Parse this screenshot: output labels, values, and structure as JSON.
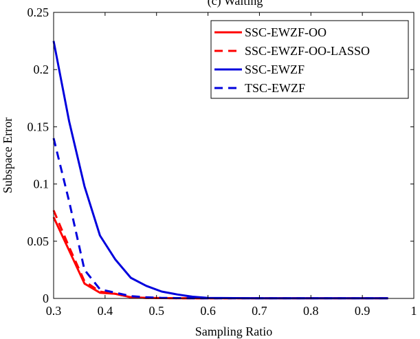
{
  "chart_data": {
    "type": "line",
    "title": "(c) Waiting",
    "xlabel": "Sampling Ratio",
    "ylabel": "Subspace Error",
    "xlim": [
      0.3,
      1
    ],
    "ylim": [
      0,
      0.25
    ],
    "xticks": [
      0.3,
      0.4,
      0.5,
      0.6,
      0.7,
      0.8,
      0.9,
      1
    ],
    "xtick_labels": [
      "0.3",
      "0.4",
      "0.5",
      "0.6",
      "0.7",
      "0.8",
      "0.9",
      "1"
    ],
    "yticks": [
      0,
      0.05,
      0.1,
      0.15,
      0.2,
      0.25
    ],
    "ytick_labels": [
      "0",
      "0.05",
      "0.1",
      "0.15",
      "0.2",
      "0.25"
    ],
    "grid": false,
    "legend_position": "top-right",
    "series": [
      {
        "name": "SSC-EWZF-OO",
        "color": "#ff0000",
        "dash": "solid",
        "x": [
          0.3,
          0.33,
          0.36,
          0.39,
          0.42,
          0.45,
          0.48,
          0.51,
          0.54,
          0.57,
          0.6,
          0.65,
          0.7,
          0.75,
          0.8,
          0.85,
          0.9,
          0.95
        ],
        "y": [
          0.071,
          0.042,
          0.013,
          0.005,
          0.004,
          0.001,
          0.0005,
          0.0003,
          0.0002,
          0.0001,
          0.0001,
          0.0001,
          0.0001,
          0.0001,
          0.0001,
          0.0001,
          0.0001,
          0.0001
        ]
      },
      {
        "name": "SSC-EWZF-OO-LASSO",
        "color": "#ff0000",
        "dash": "dashed",
        "x": [
          0.3,
          0.33,
          0.36,
          0.39,
          0.42,
          0.45,
          0.48,
          0.51,
          0.54,
          0.57,
          0.6,
          0.65,
          0.7,
          0.75,
          0.8,
          0.85,
          0.9,
          0.95
        ],
        "y": [
          0.077,
          0.045,
          0.015,
          0.006,
          0.004,
          0.001,
          0.0005,
          0.0003,
          0.0002,
          0.0001,
          0.0001,
          0.0001,
          0.0001,
          0.0001,
          0.0001,
          0.0001,
          0.0001,
          0.0001
        ]
      },
      {
        "name": "SSC-EWZF",
        "color": "#0000dd",
        "dash": "solid",
        "x": [
          0.3,
          0.33,
          0.36,
          0.39,
          0.42,
          0.45,
          0.48,
          0.51,
          0.54,
          0.57,
          0.6,
          0.65,
          0.7,
          0.75,
          0.8,
          0.85,
          0.9,
          0.95
        ],
        "y": [
          0.225,
          0.155,
          0.098,
          0.055,
          0.034,
          0.018,
          0.011,
          0.006,
          0.0035,
          0.0015,
          0.0005,
          0.0003,
          0.0002,
          0.0002,
          0.0001,
          0.0001,
          0.0001,
          0.0001
        ]
      },
      {
        "name": "TSC-EWZF",
        "color": "#0000dd",
        "dash": "dashed",
        "x": [
          0.3,
          0.33,
          0.36,
          0.39,
          0.42,
          0.45,
          0.48,
          0.51,
          0.54,
          0.57,
          0.6,
          0.65,
          0.7,
          0.75,
          0.8,
          0.85,
          0.9,
          0.95
        ],
        "y": [
          0.14,
          0.085,
          0.025,
          0.008,
          0.005,
          0.002,
          0.001,
          0.0005,
          0.0003,
          0.0002,
          0.0001,
          0.0001,
          0.0001,
          0.0001,
          0.0001,
          0.0001,
          0.0001,
          0.0001
        ]
      }
    ]
  }
}
